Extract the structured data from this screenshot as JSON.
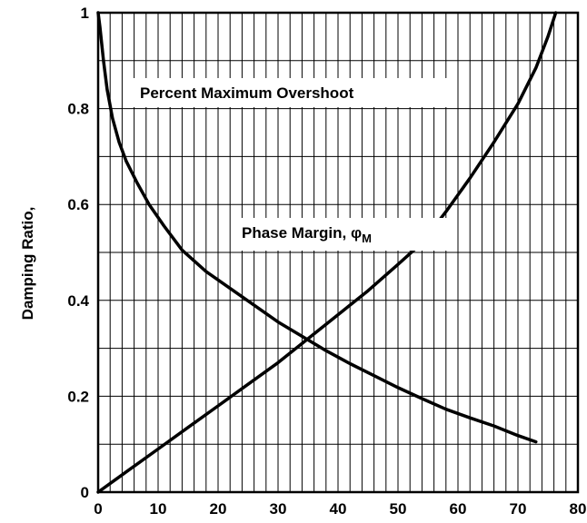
{
  "chart_data": {
    "type": "line",
    "title": "",
    "xlabel": "",
    "ylabel": "Damping Ratio,",
    "xlim": [
      0,
      80
    ],
    "ylim": [
      0,
      1
    ],
    "x_ticks": [
      0,
      10,
      20,
      30,
      40,
      50,
      60,
      70,
      80
    ],
    "y_ticks": [
      0,
      0.2,
      0.4,
      0.6,
      0.8,
      1
    ],
    "y_tick_labels": [
      "0",
      "0.2",
      "0.4",
      "0.6",
      "0.8",
      "1"
    ],
    "grid": {
      "vertical_every": 2,
      "horizontal_every": 0.1
    },
    "series": [
      {
        "name": "Percent Maximum Overshoot",
        "x": [
          0,
          0.3,
          0.9,
          1.5,
          2.4,
          3.5,
          4.7,
          6.5,
          8.5,
          11,
          14,
          18,
          22,
          26,
          30,
          34,
          38,
          42,
          46,
          50,
          54,
          58,
          62,
          66,
          70,
          73
        ],
        "y": [
          1.0,
          0.97,
          0.9,
          0.84,
          0.78,
          0.73,
          0.69,
          0.645,
          0.6,
          0.555,
          0.505,
          0.46,
          0.425,
          0.39,
          0.355,
          0.325,
          0.295,
          0.268,
          0.243,
          0.218,
          0.195,
          0.173,
          0.155,
          0.138,
          0.118,
          0.105
        ]
      },
      {
        "name": "Phase Margin, φM",
        "x": [
          0,
          5,
          10,
          15,
          20,
          25,
          30,
          35,
          40,
          45,
          50,
          54,
          58,
          62,
          66,
          70,
          73,
          75,
          76.3
        ],
        "y": [
          0,
          0.045,
          0.09,
          0.135,
          0.18,
          0.225,
          0.27,
          0.32,
          0.37,
          0.42,
          0.475,
          0.52,
          0.585,
          0.655,
          0.73,
          0.81,
          0.885,
          0.95,
          1.0
        ]
      }
    ],
    "annotations": [
      {
        "text": "Percent Maximum Overshoot",
        "x": 30,
        "y": 0.845
      },
      {
        "text": "Phase Margin, φ",
        "sub": "M",
        "x": 44,
        "y": 0.59
      }
    ]
  }
}
